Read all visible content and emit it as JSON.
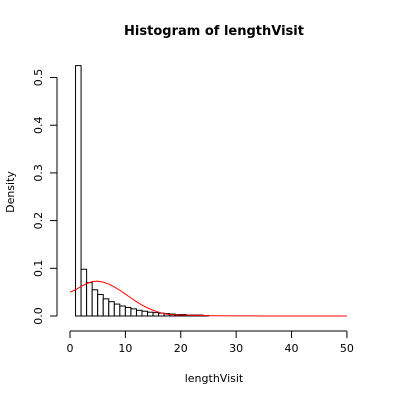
{
  "chart_data": {
    "type": "bar",
    "title": "Histogram of lengthVisit",
    "xlabel": "lengthVisit",
    "ylabel": "Density",
    "xlim": [
      0,
      52
    ],
    "ylim": [
      0,
      0.52
    ],
    "x_ticks": [
      0,
      10,
      20,
      30,
      40,
      50
    ],
    "y_ticks": [
      0.0,
      0.1,
      0.2,
      0.3,
      0.4,
      0.5
    ],
    "y_tick_labels": [
      "0.0",
      "0.1",
      "0.2",
      "0.3",
      "0.4",
      "0.5"
    ],
    "bins": [
      {
        "x0": 1,
        "x1": 2,
        "value": 0.525
      },
      {
        "x0": 2,
        "x1": 3,
        "value": 0.098
      },
      {
        "x0": 3,
        "x1": 4,
        "value": 0.07
      },
      {
        "x0": 4,
        "x1": 5,
        "value": 0.055
      },
      {
        "x0": 5,
        "x1": 6,
        "value": 0.045
      },
      {
        "x0": 6,
        "x1": 7,
        "value": 0.036
      },
      {
        "x0": 7,
        "x1": 8,
        "value": 0.03
      },
      {
        "x0": 8,
        "x1": 9,
        "value": 0.025
      },
      {
        "x0": 9,
        "x1": 10,
        "value": 0.021
      },
      {
        "x0": 10,
        "x1": 11,
        "value": 0.018
      },
      {
        "x0": 11,
        "x1": 12,
        "value": 0.015
      },
      {
        "x0": 12,
        "x1": 13,
        "value": 0.012
      },
      {
        "x0": 13,
        "x1": 14,
        "value": 0.01
      },
      {
        "x0": 14,
        "x1": 15,
        "value": 0.008
      },
      {
        "x0": 15,
        "x1": 16,
        "value": 0.007
      },
      {
        "x0": 16,
        "x1": 17,
        "value": 0.006
      },
      {
        "x0": 17,
        "x1": 18,
        "value": 0.005
      },
      {
        "x0": 18,
        "x1": 19,
        "value": 0.004
      },
      {
        "x0": 19,
        "x1": 20,
        "value": 0.003
      },
      {
        "x0": 20,
        "x1": 21,
        "value": 0.003
      },
      {
        "x0": 21,
        "x1": 22,
        "value": 0.002
      },
      {
        "x0": 22,
        "x1": 23,
        "value": 0.002
      },
      {
        "x0": 23,
        "x1": 24,
        "value": 0.002
      },
      {
        "x0": 24,
        "x1": 25,
        "value": 0.001
      }
    ],
    "curve": {
      "x": [
        0,
        1,
        2,
        3,
        4,
        5,
        6,
        7,
        8,
        9,
        10,
        11,
        12,
        13,
        14,
        15,
        16,
        17,
        18,
        20,
        22,
        24,
        26,
        30,
        35,
        40,
        45,
        50
      ],
      "y": [
        0.05,
        0.055,
        0.062,
        0.068,
        0.072,
        0.073,
        0.071,
        0.067,
        0.061,
        0.054,
        0.046,
        0.038,
        0.03,
        0.023,
        0.017,
        0.012,
        0.008,
        0.005,
        0.003,
        0.002,
        0.0015,
        0.001,
        0.0005,
        0.0002,
        0.0001,
        5e-05,
        2e-05,
        1e-05
      ],
      "color": "#ff0000"
    },
    "bar_fill": "#ffffff",
    "bar_stroke": "#000000",
    "grid": false,
    "legend": "none"
  }
}
